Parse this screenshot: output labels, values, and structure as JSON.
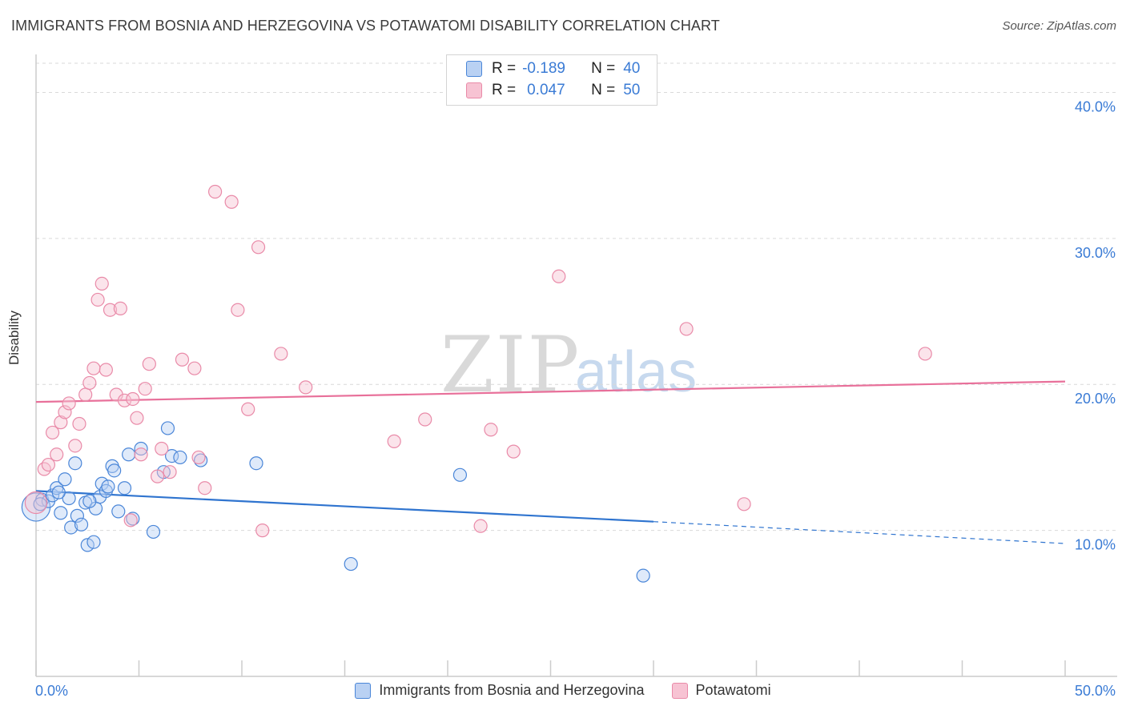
{
  "title": "IMMIGRANTS FROM BOSNIA AND HERZEGOVINA VS POTAWATOMI DISABILITY CORRELATION CHART",
  "source": "Source: ZipAtlas.com",
  "watermark": {
    "zip": "ZIP",
    "atlas": "atlas"
  },
  "colors": {
    "blue": "#4a86d8",
    "blue_fill": "#b9d1f3",
    "blue_line": "#2f74cf",
    "pink": "#e98aa8",
    "pink_fill": "#f7c3d3",
    "pink_line": "#e8709a",
    "axis_text": "#3a7bd5",
    "grid": "#d9d9d9"
  },
  "stats": {
    "series1": {
      "r_label": "R =",
      "r_value": "-0.189",
      "n_label": "N =",
      "n_value": "40"
    },
    "series2": {
      "r_label": "R =",
      "r_value": "0.047",
      "n_label": "N =",
      "n_value": "50"
    }
  },
  "chart_data": {
    "type": "scatter",
    "title": "IMMIGRANTS FROM BOSNIA AND HERZEGOVINA VS POTAWATOMI DISABILITY CORRELATION CHART",
    "xlabel": "",
    "ylabel": "Disability",
    "xlim": [
      0,
      50
    ],
    "ylim": [
      0,
      42
    ],
    "x_tick_labels": [
      "0.0%",
      "50.0%"
    ],
    "y_ticks": [
      10,
      20,
      30,
      40
    ],
    "y_tick_labels": [
      "10.0%",
      "20.0%",
      "30.0%",
      "40.0%"
    ],
    "legend_position": "bottom",
    "series": [
      {
        "name": "Immigrants from Bosnia and Herzegovina",
        "color": "blue",
        "r": -0.189,
        "n": 40,
        "trend": {
          "x0": 0,
          "y0": 12.7,
          "x1": 30,
          "y1": 10.6,
          "dashed_to_x": 50,
          "dashed_to_y": 9.1
        },
        "points": [
          [
            0.0,
            11.6,
            2.2
          ],
          [
            0.3,
            12.1,
            1.0
          ],
          [
            0.6,
            12.0,
            1.0
          ],
          [
            0.8,
            12.4,
            1.0
          ],
          [
            1.0,
            12.9,
            1.0
          ],
          [
            1.2,
            11.2,
            1.0
          ],
          [
            1.4,
            13.5,
            1.0
          ],
          [
            1.6,
            12.2,
            1.0
          ],
          [
            1.7,
            10.2,
            1.0
          ],
          [
            1.9,
            14.6,
            1.0
          ],
          [
            2.0,
            11.0,
            1.0
          ],
          [
            2.2,
            10.4,
            1.0
          ],
          [
            2.4,
            11.9,
            1.0
          ],
          [
            2.5,
            9.0,
            1.0
          ],
          [
            2.8,
            9.2,
            1.0
          ],
          [
            2.9,
            11.5,
            1.0
          ],
          [
            3.1,
            12.3,
            1.0
          ],
          [
            3.2,
            13.2,
            1.0
          ],
          [
            3.4,
            12.7,
            1.0
          ],
          [
            3.5,
            13.0,
            1.0
          ],
          [
            3.7,
            14.4,
            1.0
          ],
          [
            3.8,
            14.1,
            1.0
          ],
          [
            4.0,
            11.3,
            1.0
          ],
          [
            4.3,
            12.9,
            1.0
          ],
          [
            4.5,
            15.2,
            1.0
          ],
          [
            4.7,
            10.8,
            1.0
          ],
          [
            5.1,
            15.6,
            1.0
          ],
          [
            5.7,
            9.9,
            1.0
          ],
          [
            6.2,
            14.0,
            1.0
          ],
          [
            6.4,
            17.0,
            1.0
          ],
          [
            6.6,
            15.1,
            1.0
          ],
          [
            7.0,
            15.0,
            1.0
          ],
          [
            8.0,
            14.8,
            1.0
          ],
          [
            10.7,
            14.6,
            1.0
          ],
          [
            15.3,
            7.7,
            1.0
          ],
          [
            20.6,
            13.8,
            1.0
          ],
          [
            29.5,
            6.9,
            1.0
          ],
          [
            0.2,
            11.8,
            1.0
          ],
          [
            1.1,
            12.6,
            1.0
          ],
          [
            2.6,
            12.0,
            1.0
          ]
        ]
      },
      {
        "name": "Potawatomi",
        "color": "pink",
        "r": 0.047,
        "n": 50,
        "trend": {
          "x0": 0,
          "y0": 18.8,
          "x1": 50,
          "y1": 20.2
        },
        "points": [
          [
            0.0,
            11.9,
            1.7
          ],
          [
            0.4,
            14.2,
            1.0
          ],
          [
            0.6,
            14.5,
            1.0
          ],
          [
            0.8,
            16.7,
            1.0
          ],
          [
            1.0,
            15.2,
            1.0
          ],
          [
            1.2,
            17.4,
            1.0
          ],
          [
            1.4,
            18.1,
            1.0
          ],
          [
            1.6,
            18.7,
            1.0
          ],
          [
            1.9,
            15.8,
            1.0
          ],
          [
            2.1,
            17.3,
            1.0
          ],
          [
            2.4,
            19.3,
            1.0
          ],
          [
            2.6,
            20.1,
            1.0
          ],
          [
            2.8,
            21.1,
            1.0
          ],
          [
            3.0,
            25.8,
            1.0
          ],
          [
            3.2,
            26.9,
            1.0
          ],
          [
            3.4,
            21.0,
            1.0
          ],
          [
            3.6,
            25.1,
            1.0
          ],
          [
            3.9,
            19.3,
            1.0
          ],
          [
            4.1,
            25.2,
            1.0
          ],
          [
            4.3,
            18.9,
            1.0
          ],
          [
            4.7,
            19.0,
            1.0
          ],
          [
            4.9,
            17.7,
            1.0
          ],
          [
            5.1,
            15.2,
            1.0
          ],
          [
            5.3,
            19.7,
            1.0
          ],
          [
            5.5,
            21.4,
            1.0
          ],
          [
            5.9,
            13.7,
            1.0
          ],
          [
            6.1,
            15.6,
            1.0
          ],
          [
            6.5,
            14.0,
            1.0
          ],
          [
            7.1,
            21.7,
            1.0
          ],
          [
            7.7,
            21.1,
            1.0
          ],
          [
            8.2,
            12.9,
            1.0
          ],
          [
            8.7,
            33.2,
            1.0
          ],
          [
            9.5,
            32.5,
            1.0
          ],
          [
            9.8,
            25.1,
            1.0
          ],
          [
            10.3,
            18.3,
            1.0
          ],
          [
            10.8,
            29.4,
            1.0
          ],
          [
            11.0,
            10.0,
            1.0
          ],
          [
            11.9,
            22.1,
            1.0
          ],
          [
            13.1,
            19.8,
            1.0
          ],
          [
            17.4,
            16.1,
            1.0
          ],
          [
            18.9,
            17.6,
            1.0
          ],
          [
            22.1,
            16.9,
            1.0
          ],
          [
            23.2,
            15.4,
            1.0
          ],
          [
            21.6,
            10.3,
            1.0
          ],
          [
            25.4,
            27.4,
            1.0
          ],
          [
            31.6,
            23.8,
            1.0
          ],
          [
            34.4,
            11.8,
            1.0
          ],
          [
            43.2,
            22.1,
            1.0
          ],
          [
            4.6,
            10.7,
            1.0
          ],
          [
            7.9,
            15.0,
            1.0
          ]
        ]
      }
    ]
  },
  "legend": {
    "series1_label": "Immigrants from Bosnia and Herzegovina",
    "series2_label": "Potawatomi"
  }
}
